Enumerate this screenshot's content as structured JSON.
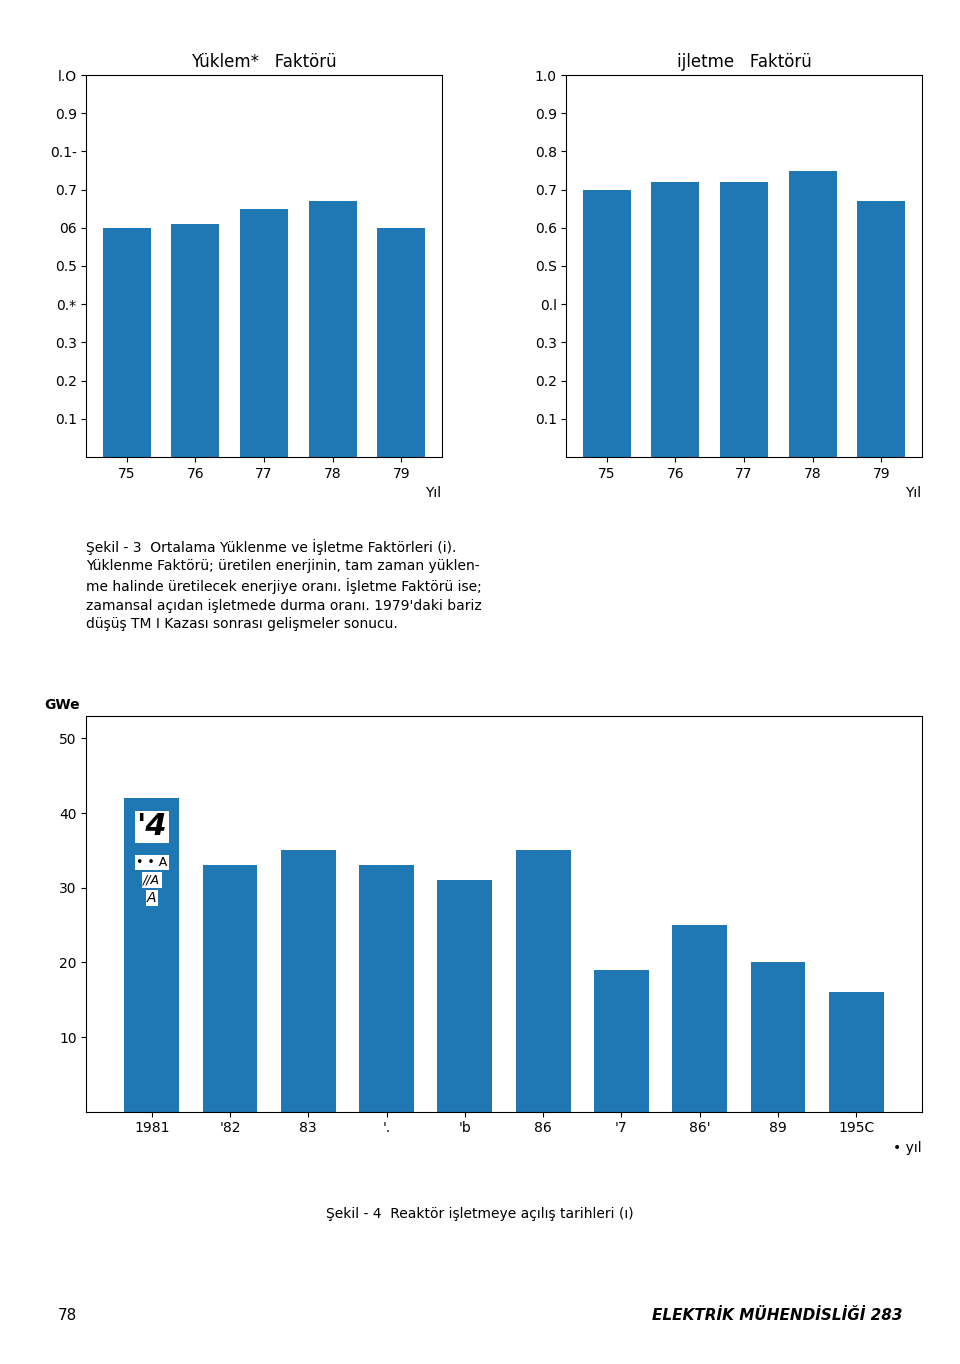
{
  "chart_data": [
    {
      "type": "bar",
      "title": "Yüklem*   Faktörü",
      "categories": [
        "75",
        "76",
        "77",
        "78",
        "79"
      ],
      "values": [
        0.6,
        0.61,
        0.65,
        0.67,
        0.6
      ],
      "xlabel": "Yıl",
      "ylim": [
        0,
        1.0
      ],
      "yticks": [
        0.1,
        0.2,
        0.3,
        {
          "value": 0.4,
          "label": "0.*"
        },
        0.5,
        {
          "value": 0.6,
          "label": "06"
        },
        0.7,
        {
          "value": 0.8,
          "label": "0.1-"
        },
        0.9,
        {
          "value": 1.0,
          "label": "l.O"
        }
      ],
      "grid": false,
      "annotations": [
        "Şekil - 3  Ortalama Yüklenme ve İşletme Faktörleri (i).\nYüklenme Faktörü; üretilen enerjinin, tam zaman yüklen-\nme halinde üretilecek enerjiye oranı. İşletme Faktörü ise;\nzamansal açıdan işletmede durma oranı. 1979'daki bariz\ndüşüş TM I Kazası sonrası gelişmeler sonucu."
      ]
    },
    {
      "type": "bar",
      "title": "ijletme   Faktörü",
      "categories": [
        "75",
        "76",
        "77",
        "78",
        "79"
      ],
      "values": [
        0.7,
        0.72,
        0.72,
        0.75,
        0.67
      ],
      "xlabel": "Yıl",
      "ylim": [
        0,
        1.0
      ],
      "yticks": [
        0.1,
        0.2,
        0.3,
        {
          "value": 0.4,
          "label": "0.l"
        },
        {
          "value": 0.5,
          "label": "0.S"
        },
        0.6,
        0.7,
        0.8,
        0.9,
        1.0
      ],
      "grid": false
    },
    {
      "type": "bar",
      "categories": [
        "1981",
        "'82",
        "83",
        "'.",
        "'b",
        "86",
        "'7",
        "86'",
        "89",
        "195C"
      ],
      "values": [
        42,
        33,
        35,
        33,
        31,
        35,
        19,
        25,
        20,
        16
      ],
      "xlabel": "• yıl",
      "ylabel": "GWe",
      "ylim": [
        0,
        53
      ],
      "yticks": [
        10,
        20,
        30,
        40,
        50
      ],
      "grid": false,
      "annotations": [
        "'4",
        "• • A",
        "//A",
        "A",
        "Şekil - 4  Reaktör işletmeye açılış tarihleri (ı)",
        "78",
        "ELEKTRİK MÜHENDİSLİĞİ 283"
      ]
    }
  ]
}
